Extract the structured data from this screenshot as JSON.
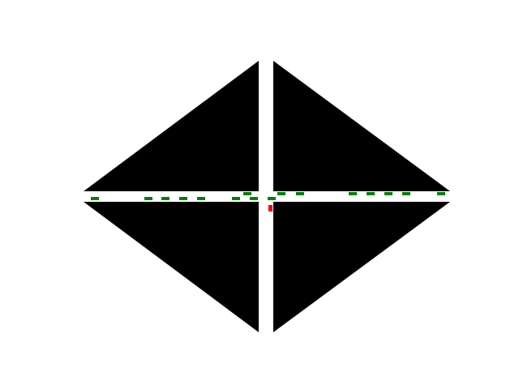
{
  "scene": {
    "background_color": "#ffffff",
    "block_color": "#000000",
    "road_color": "#ffffff",
    "car_color": "#008000",
    "agent_color": "#ff0000"
  },
  "cars": {
    "westbound_lane_count": 9,
    "eastbound_lane_count": 7,
    "agent_count": 1
  }
}
